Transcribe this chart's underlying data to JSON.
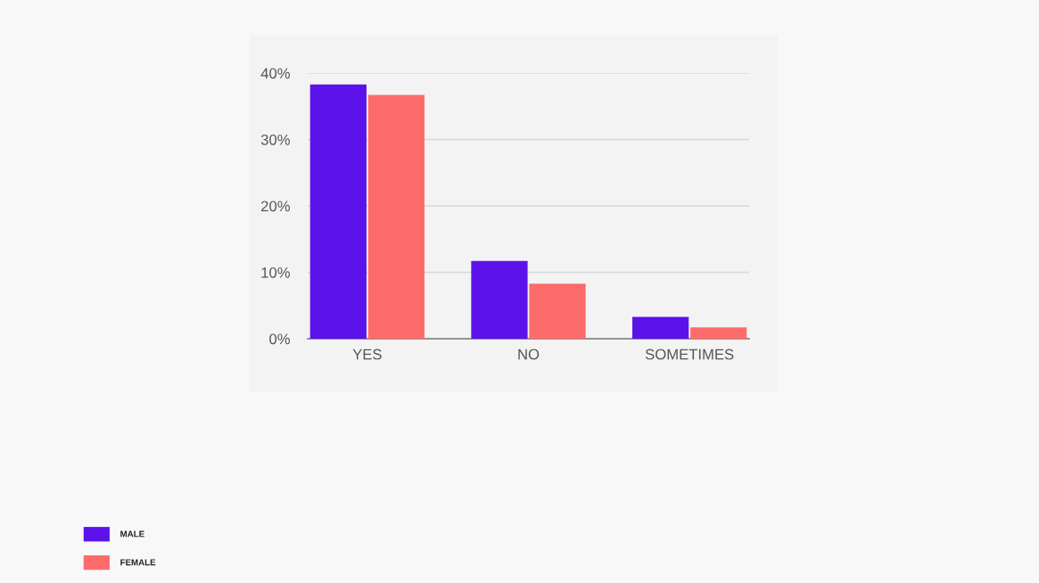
{
  "chart_data": {
    "type": "bar",
    "categories": [
      "YES",
      "NO",
      "SOMETIMES"
    ],
    "series": [
      {
        "name": "MALE",
        "color": "#5b13ea",
        "values": [
          38.3,
          11.7,
          3.3
        ]
      },
      {
        "name": "FEMALE",
        "color": "#fe6b6b",
        "values": [
          36.7,
          8.3,
          1.7
        ]
      }
    ],
    "ylim": [
      0,
      40
    ],
    "yticks": [
      {
        "value": 0,
        "label": "0%"
      },
      {
        "value": 10,
        "label": "10%"
      },
      {
        "value": 20,
        "label": "20%"
      },
      {
        "value": 30,
        "label": "30%"
      },
      {
        "value": 40,
        "label": "40%"
      }
    ],
    "grid": "y",
    "legend": "bottom left"
  }
}
